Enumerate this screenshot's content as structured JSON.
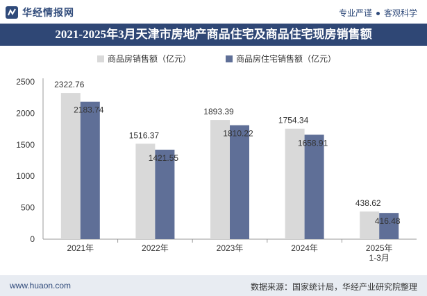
{
  "header": {
    "logo_text": "华经情报网",
    "slogan_left": "专业严谨",
    "slogan_right": "客观科学"
  },
  "footer": {
    "url": "www.huaon.com",
    "source": "数据来源：国家统计局，华经产业研究院整理"
  },
  "colors": {
    "title_bg": "#2f4775",
    "series1": "#d9d9d9",
    "series2": "#5f6f97"
  },
  "chart_data": {
    "type": "bar",
    "title": "2021-2025年3月天津市房地产商品住宅及商品住宅现房销售额",
    "categories": [
      "2021年",
      "2022年",
      "2023年",
      "2024年",
      "2025年\n1-3月"
    ],
    "series": [
      {
        "name": "商品房销售额（亿元）",
        "values": [
          2322.76,
          1516.37,
          1893.39,
          1754.34,
          438.62
        ]
      },
      {
        "name": "商品房住宅销售额（亿元）",
        "values": [
          2183.74,
          1421.55,
          1810.22,
          1658.91,
          416.48
        ]
      }
    ],
    "yticks": [
      0,
      500,
      1000,
      1500,
      2000,
      2500
    ],
    "ylim": [
      0,
      2500
    ],
    "xlabel": "",
    "ylabel": "",
    "legend": "top-center",
    "grid": false
  }
}
